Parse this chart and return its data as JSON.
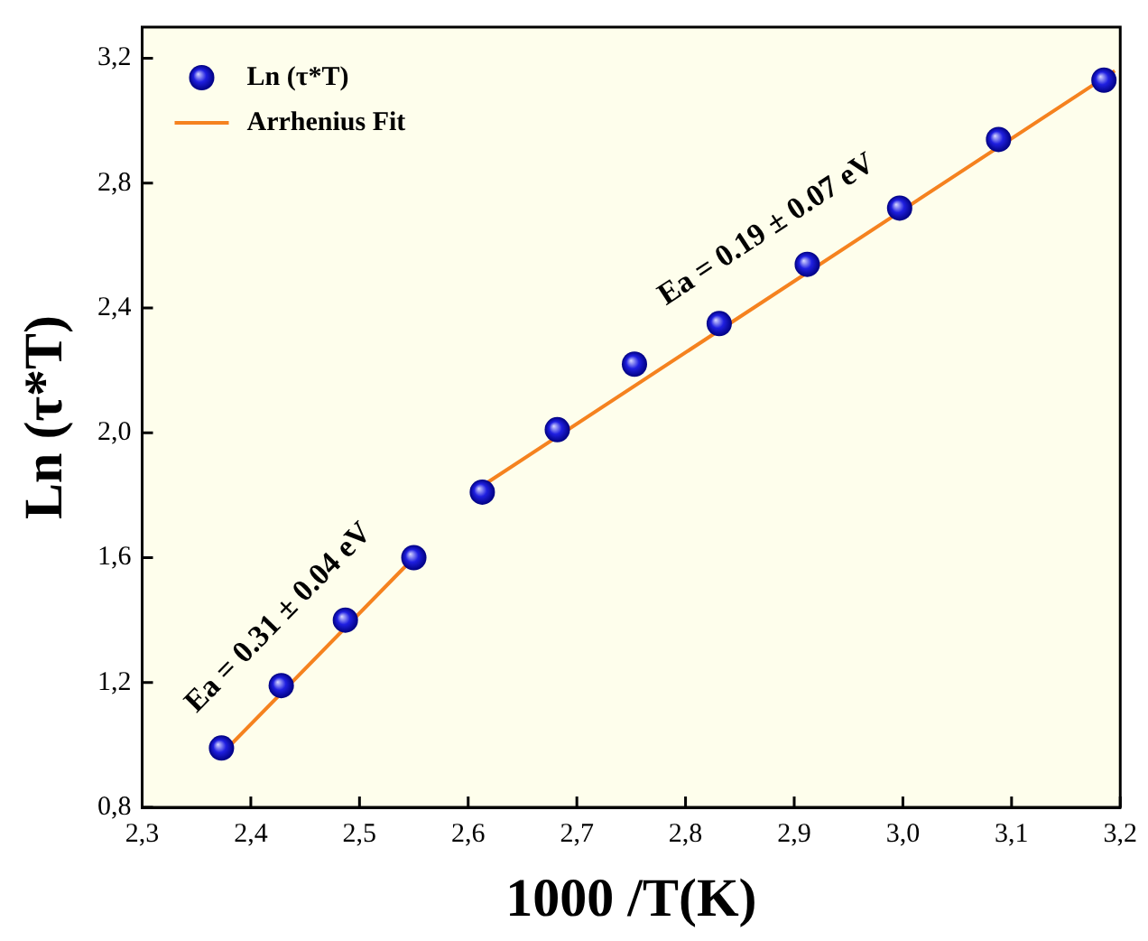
{
  "chart_data": {
    "type": "scatter",
    "xlabel": "1000 /T(K)",
    "ylabel": "Ln (τ*T)",
    "xlim": [
      2.3,
      3.2
    ],
    "xticks": [
      {
        "value": 2.3,
        "label": "2,3"
      },
      {
        "value": 2.4,
        "label": "2,4"
      },
      {
        "value": 2.5,
        "label": "2,5"
      },
      {
        "value": 2.6,
        "label": "2,6"
      },
      {
        "value": 2.7,
        "label": "2,7"
      },
      {
        "value": 2.8,
        "label": "2,8"
      },
      {
        "value": 2.9,
        "label": "2,9"
      },
      {
        "value": 3.0,
        "label": "3,0"
      },
      {
        "value": 3.1,
        "label": "3,1"
      },
      {
        "value": 3.2,
        "label": "3,2"
      }
    ],
    "ylim": [
      0.8,
      3.3
    ],
    "yticks": [
      {
        "value": 0.8,
        "label": "0,8"
      },
      {
        "value": 1.2,
        "label": "1,2"
      },
      {
        "value": 1.6,
        "label": "1,6"
      },
      {
        "value": 2.0,
        "label": "2,0"
      },
      {
        "value": 2.4,
        "label": "2,4"
      },
      {
        "value": 2.8,
        "label": "2,8"
      },
      {
        "value": 3.2,
        "label": "3,2"
      }
    ],
    "legend": "top left",
    "grid": false,
    "series": [
      {
        "name": "Ln (τ*T)",
        "type": "scatter",
        "marker": "circle",
        "color": "#1f1fe0",
        "x": [
          2.373,
          2.428,
          2.487,
          2.55,
          2.613,
          2.682,
          2.753,
          2.831,
          2.912,
          2.997,
          3.088,
          3.185
        ],
        "values": [
          0.99,
          1.19,
          1.4,
          1.6,
          1.81,
          2.01,
          2.22,
          2.35,
          2.54,
          2.72,
          2.94,
          3.13
        ]
      },
      {
        "name": "Arrhenius Fit",
        "type": "line",
        "marker": "none",
        "line_style": "solid",
        "color": "#f5821f",
        "x": [
          2.373,
          2.55,
          2.58,
          2.613,
          3.195
        ],
        "values": [
          0.97,
          1.6,
          null,
          1.83,
          3.16
        ]
      }
    ],
    "annotations": [
      "Ea = 0.31 ± 0.04 eV",
      "Ea = 0.19 ± 0.07 eV"
    ]
  }
}
